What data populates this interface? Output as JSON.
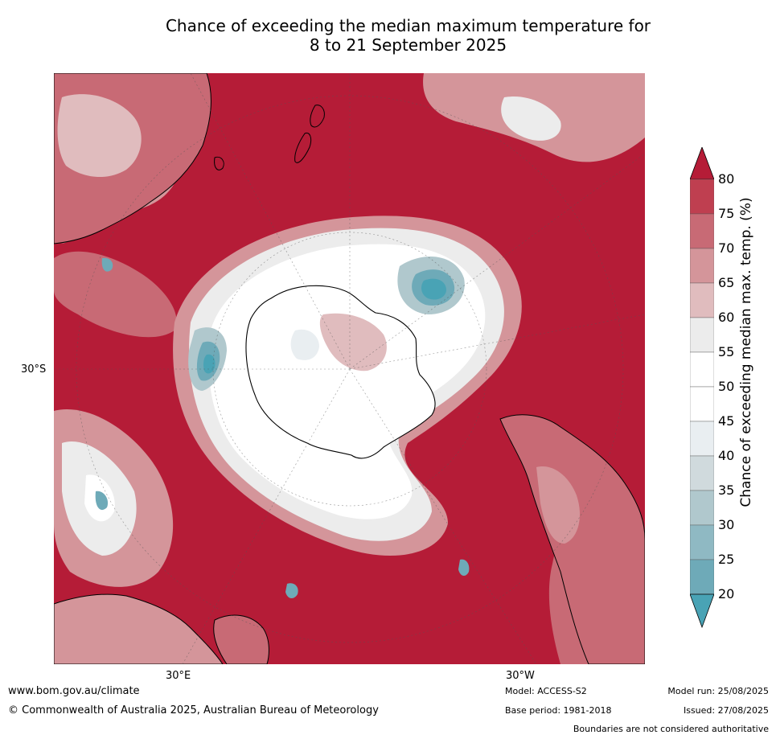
{
  "title_line1": "Chance of exceeding the median maximum temperature for",
  "title_line2": "8 to 21 September 2025",
  "map": {
    "lat_label": "30°S",
    "lon_label_east": "30°E",
    "lon_label_west": "30°W",
    "colors": {
      "ocean_dominant": "#b51c37",
      "land_outline": "#000000"
    }
  },
  "colorbar": {
    "label": "Chance of exceeding median max. temp. (%)",
    "ticks": [
      "80",
      "75",
      "70",
      "65",
      "60",
      "55",
      "50",
      "45",
      "40",
      "35",
      "30",
      "25",
      "20"
    ],
    "colors": [
      "#b51c37",
      "#bf3f50",
      "#c86a75",
      "#d4959a",
      "#e0bcbe",
      "#ececec",
      "#ffffff",
      "#ffffff",
      "#e9eef1",
      "#d0dadd",
      "#b0c8cd",
      "#8fb9c3",
      "#6eaab8",
      "#49a3b5"
    ]
  },
  "footer": {
    "website": "www.bom.gov.au/climate",
    "copyright": "© Commonwealth of Australia 2025, Australian Bureau of Meteorology",
    "model": "Model: ACCESS-S2",
    "base_period": "Base period: 1981-2018",
    "model_run": "Model run: 25/08/2025",
    "issued": "Issued: 27/08/2025",
    "boundaries_note": "Boundaries are not considered authoritative"
  }
}
